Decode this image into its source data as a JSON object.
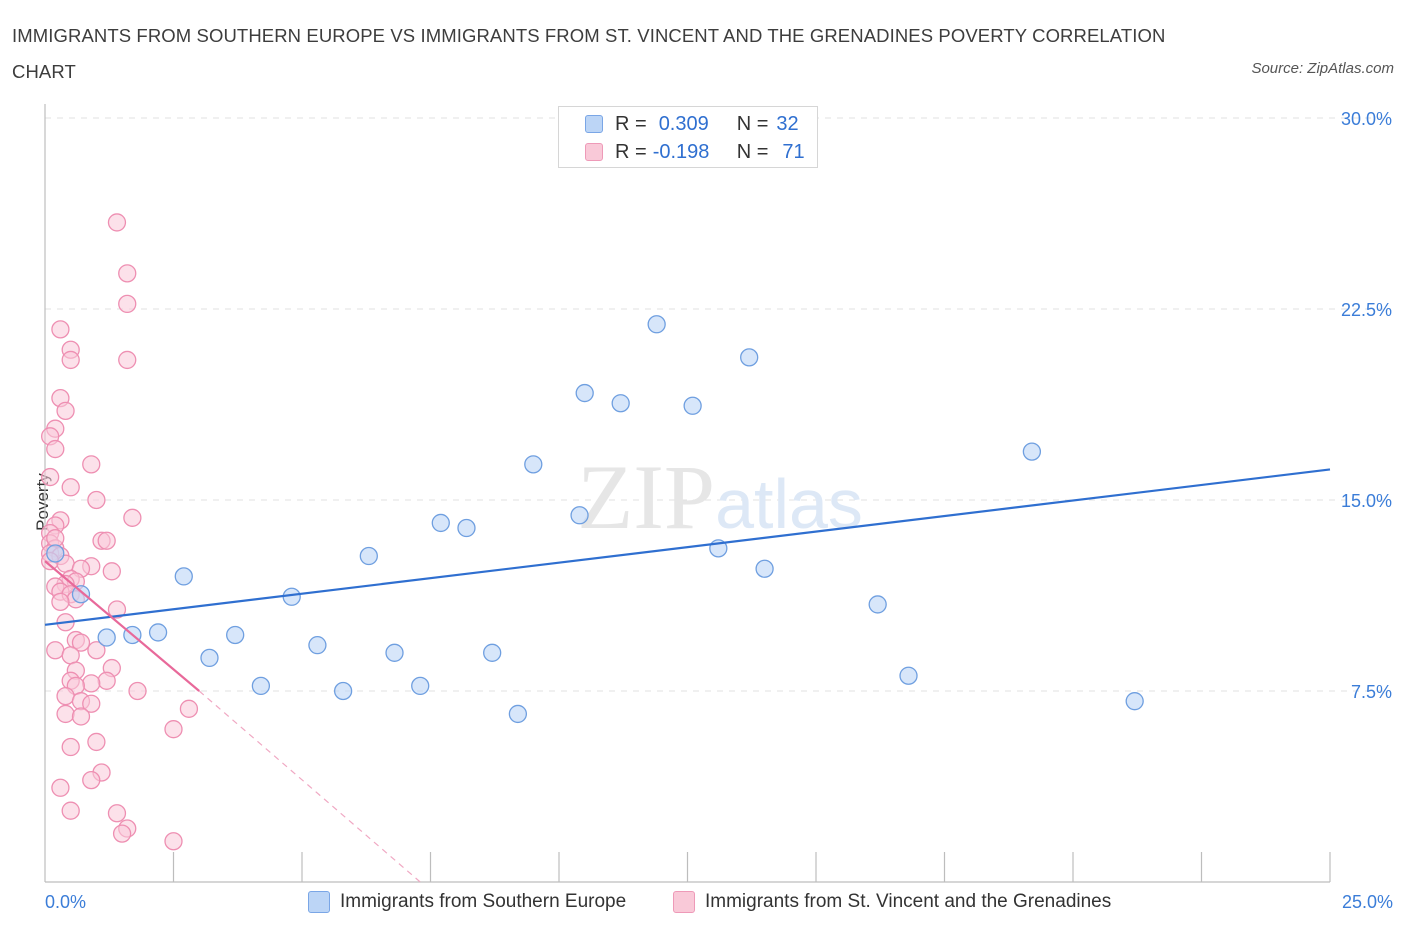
{
  "title": "IMMIGRANTS FROM SOUTHERN EUROPE VS IMMIGRANTS FROM ST. VINCENT AND THE GRENADINES POVERTY CORRELATION CHART",
  "source": "Source: ZipAtlas.com",
  "watermark": "ZIPatlas",
  "colors": {
    "blue": "#3a78d4",
    "blue_fill": "#bcd5f6",
    "pink": "#e8699a",
    "pink_fill": "#f9c9d8",
    "tick_text": "#3b7dd8"
  },
  "legend": {
    "rows": [
      {
        "r_label": "R =",
        "r_value": "0.309",
        "n_label": "N =",
        "n_value": "32"
      },
      {
        "r_label": "R =",
        "r_value": "-0.198",
        "n_label": "N =",
        "n_value": "71"
      }
    ]
  },
  "chart_data": {
    "type": "scatter",
    "title": "IMMIGRANTS FROM SOUTHERN EUROPE VS IMMIGRANTS FROM ST. VINCENT AND THE GRENADINES POVERTY CORRELATION CHART",
    "xlabel": "",
    "ylabel": "Poverty",
    "xlim": [
      0,
      25
    ],
    "ylim": [
      0,
      30
    ],
    "x_tick_labels": {
      "min": "0.0%",
      "max": "25.0%"
    },
    "y_ticks": [
      {
        "value": 7.5,
        "label": "7.5%"
      },
      {
        "value": 15,
        "label": "15.0%"
      },
      {
        "value": 22.5,
        "label": "22.5%"
      },
      {
        "value": 30,
        "label": "30.0%"
      }
    ],
    "grid": true,
    "legend_position": "top-center",
    "series": [
      {
        "name": "Immigrants from Southern Europe",
        "color": "#3a78d4",
        "r": 0.309,
        "n": 32,
        "trend": {
          "x": [
            0,
            25
          ],
          "y": [
            10.1,
            16.2
          ]
        },
        "points": [
          [
            0.2,
            12.9
          ],
          [
            0.7,
            11.3
          ],
          [
            1.2,
            9.6
          ],
          [
            1.7,
            9.7
          ],
          [
            2.2,
            9.8
          ],
          [
            2.7,
            12.0
          ],
          [
            3.2,
            8.8
          ],
          [
            3.7,
            9.7
          ],
          [
            4.2,
            7.7
          ],
          [
            4.8,
            11.2
          ],
          [
            5.3,
            9.3
          ],
          [
            5.8,
            7.5
          ],
          [
            6.3,
            12.8
          ],
          [
            6.8,
            9.0
          ],
          [
            7.3,
            7.7
          ],
          [
            7.7,
            14.1
          ],
          [
            8.2,
            13.9
          ],
          [
            8.7,
            9.0
          ],
          [
            9.2,
            6.6
          ],
          [
            9.5,
            16.4
          ],
          [
            10.4,
            14.4
          ],
          [
            10.5,
            19.2
          ],
          [
            11.2,
            18.8
          ],
          [
            11.9,
            21.9
          ],
          [
            12.6,
            18.7
          ],
          [
            13.1,
            13.1
          ],
          [
            13.7,
            20.6
          ],
          [
            14.0,
            12.3
          ],
          [
            16.2,
            10.9
          ],
          [
            16.8,
            8.1
          ],
          [
            19.2,
            16.9
          ],
          [
            21.2,
            7.1
          ]
        ]
      },
      {
        "name": "Immigrants from St. Vincent and the Grenadines",
        "color": "#e8699a",
        "r": -0.198,
        "n": 71,
        "trend": {
          "x": [
            0,
            3.0
          ],
          "y": [
            12.6,
            7.5
          ]
        },
        "trend_dashed": {
          "x": [
            3.0,
            7.3
          ],
          "y": [
            7.5,
            0
          ]
        },
        "points": [
          [
            1.4,
            25.9
          ],
          [
            1.6,
            23.9
          ],
          [
            1.6,
            22.7
          ],
          [
            0.3,
            21.7
          ],
          [
            0.5,
            20.9
          ],
          [
            1.6,
            20.5
          ],
          [
            0.5,
            20.5
          ],
          [
            0.3,
            19.0
          ],
          [
            0.4,
            18.5
          ],
          [
            0.2,
            17.8
          ],
          [
            0.1,
            17.5
          ],
          [
            0.2,
            17.0
          ],
          [
            0.9,
            16.4
          ],
          [
            0.1,
            15.9
          ],
          [
            0.5,
            15.5
          ],
          [
            1.0,
            15.0
          ],
          [
            1.7,
            14.3
          ],
          [
            0.3,
            14.2
          ],
          [
            0.2,
            14.0
          ],
          [
            0.1,
            13.7
          ],
          [
            1.1,
            13.4
          ],
          [
            1.2,
            13.4
          ],
          [
            0.1,
            13.3
          ],
          [
            0.2,
            13.1
          ],
          [
            0.1,
            12.9
          ],
          [
            0.3,
            12.8
          ],
          [
            0.1,
            12.6
          ],
          [
            0.4,
            12.5
          ],
          [
            0.9,
            12.4
          ],
          [
            0.7,
            12.3
          ],
          [
            1.3,
            12.2
          ],
          [
            0.5,
            11.9
          ],
          [
            0.6,
            11.8
          ],
          [
            0.4,
            11.7
          ],
          [
            0.2,
            11.6
          ],
          [
            0.3,
            11.4
          ],
          [
            0.5,
            11.3
          ],
          [
            0.6,
            11.1
          ],
          [
            0.3,
            11.0
          ],
          [
            1.4,
            10.7
          ],
          [
            0.4,
            10.2
          ],
          [
            0.6,
            9.5
          ],
          [
            0.7,
            9.4
          ],
          [
            0.2,
            9.1
          ],
          [
            1.0,
            9.1
          ],
          [
            0.5,
            8.9
          ],
          [
            1.3,
            8.4
          ],
          [
            0.6,
            8.3
          ],
          [
            0.5,
            7.9
          ],
          [
            1.2,
            7.9
          ],
          [
            0.9,
            7.8
          ],
          [
            0.6,
            7.7
          ],
          [
            1.8,
            7.5
          ],
          [
            0.4,
            7.3
          ],
          [
            0.7,
            7.1
          ],
          [
            0.9,
            7.0
          ],
          [
            2.8,
            6.8
          ],
          [
            0.4,
            6.6
          ],
          [
            0.7,
            6.5
          ],
          [
            2.5,
            6.0
          ],
          [
            1.0,
            5.5
          ],
          [
            0.5,
            5.3
          ],
          [
            1.1,
            4.3
          ],
          [
            0.9,
            4.0
          ],
          [
            0.3,
            3.7
          ],
          [
            1.4,
            2.7
          ],
          [
            0.5,
            2.8
          ],
          [
            1.6,
            2.1
          ],
          [
            1.5,
            1.9
          ],
          [
            2.5,
            1.6
          ],
          [
            0.2,
            13.5
          ]
        ]
      }
    ]
  }
}
